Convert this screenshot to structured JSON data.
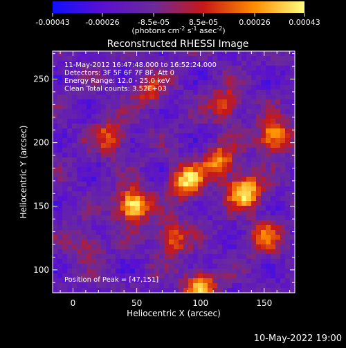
{
  "colorbar": {
    "ticks": [
      "-0.00043",
      "-0.00026",
      "-8.5e-05",
      "8.5e-05",
      "0.00026",
      "0.00043"
    ],
    "tick_values": [
      -0.00043,
      -0.00026,
      -8.5e-05,
      8.5e-05,
      0.00026,
      0.00043
    ],
    "range": [
      -0.00043,
      0.00043
    ],
    "unit_label": "(photons cm",
    "unit_exp1": "-2",
    "unit_mid": " s",
    "unit_exp2": "-1",
    "unit_end": " asec",
    "unit_exp3": "-2",
    "unit_close": ")",
    "colors": [
      "#1010ff",
      "#5a10d0",
      "#6a2a9a",
      "#c81818",
      "#ff8c00",
      "#ffff80"
    ]
  },
  "chart_data": {
    "type": "heatmap",
    "title": "Reconstructed RHESSI Image",
    "xlabel": "Heliocentric X (arcsec)",
    "ylabel": "Heliocentric Y (arcsec)",
    "x_ticks": [
      "0",
      "50",
      "100",
      "150"
    ],
    "x_tick_values": [
      0,
      50,
      100,
      150
    ],
    "y_ticks": [
      "100",
      "150",
      "200",
      "250"
    ],
    "y_tick_values": [
      100,
      150,
      200,
      250
    ],
    "xlim": [
      -16,
      174
    ],
    "ylim": [
      82,
      272
    ],
    "peak": [
      47,
      151
    ],
    "sources": [
      {
        "x": 47,
        "y": 151,
        "peak": 1.0
      },
      {
        "x": 135,
        "y": 162,
        "peak": 0.92
      },
      {
        "x": 90,
        "y": 170,
        "peak": 0.85
      },
      {
        "x": 158,
        "y": 205,
        "peak": 0.8
      },
      {
        "x": 100,
        "y": 86,
        "peak": 0.75
      },
      {
        "x": 115,
        "y": 185,
        "peak": 0.65
      },
      {
        "x": 30,
        "y": 205,
        "peak": 0.55
      },
      {
        "x": 78,
        "y": 125,
        "peak": 0.6
      },
      {
        "x": 150,
        "y": 125,
        "peak": 0.55
      },
      {
        "x": 10,
        "y": 120,
        "peak": 0.35
      },
      {
        "x": 60,
        "y": 240,
        "peak": 0.45
      },
      {
        "x": 120,
        "y": 230,
        "peak": 0.5
      }
    ],
    "annotations": [
      "11-May-2012 16:47:48.000 to 16:52:24.000",
      "Detectors: 3F 5F 6F 7F 8F, Att 0",
      "Energy Range: 12.0 - 25.0 keV",
      "Clean    Total counts: 3.52E+03"
    ],
    "peak_label": "Position of Peak = [47,151]"
  },
  "footer": {
    "timestamp": "10-May-2022 19:00"
  }
}
